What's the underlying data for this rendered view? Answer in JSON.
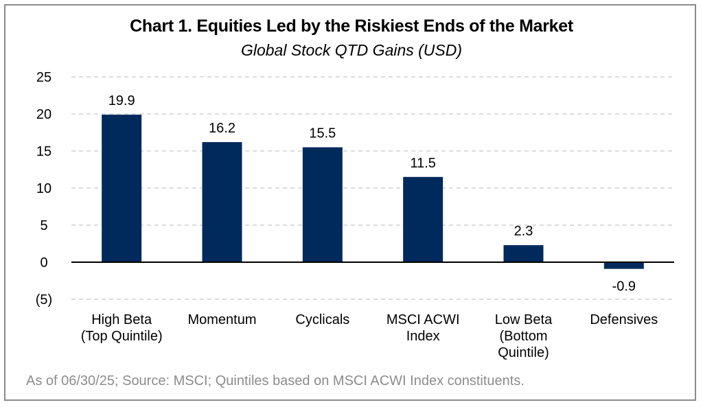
{
  "chart_data": {
    "type": "bar",
    "title": "Chart 1. Equities Led by the Riskiest Ends of the Market",
    "subtitle": "Global Stock QTD Gains (USD)",
    "categories": [
      [
        "High Beta",
        "(Top Quintile)"
      ],
      [
        "Momentum"
      ],
      [
        "Cyclicals"
      ],
      [
        "MSCI ACWI",
        "Index"
      ],
      [
        "Low Beta",
        "(Bottom",
        "Quintile)"
      ],
      [
        "Defensives"
      ]
    ],
    "values": [
      19.9,
      16.2,
      15.5,
      11.5,
      2.3,
      -0.9
    ],
    "value_labels": [
      "19.9",
      "16.2",
      "15.5",
      "11.5",
      "2.3",
      "-0.9"
    ],
    "ylim": [
      -5,
      25
    ],
    "yticks": [
      25,
      20,
      15,
      10,
      5,
      0,
      -5
    ],
    "ytick_labels": [
      "25",
      "20",
      "15",
      "10",
      "5",
      "0",
      "(5)"
    ],
    "xlabel": "",
    "ylabel": "",
    "grid": true,
    "bar_color": "#002a5c",
    "grid_color": "#d0d0d0"
  },
  "footnote": "As of 06/30/25; Source: MSCI; Quintiles based on MSCI ACWI Index constituents."
}
